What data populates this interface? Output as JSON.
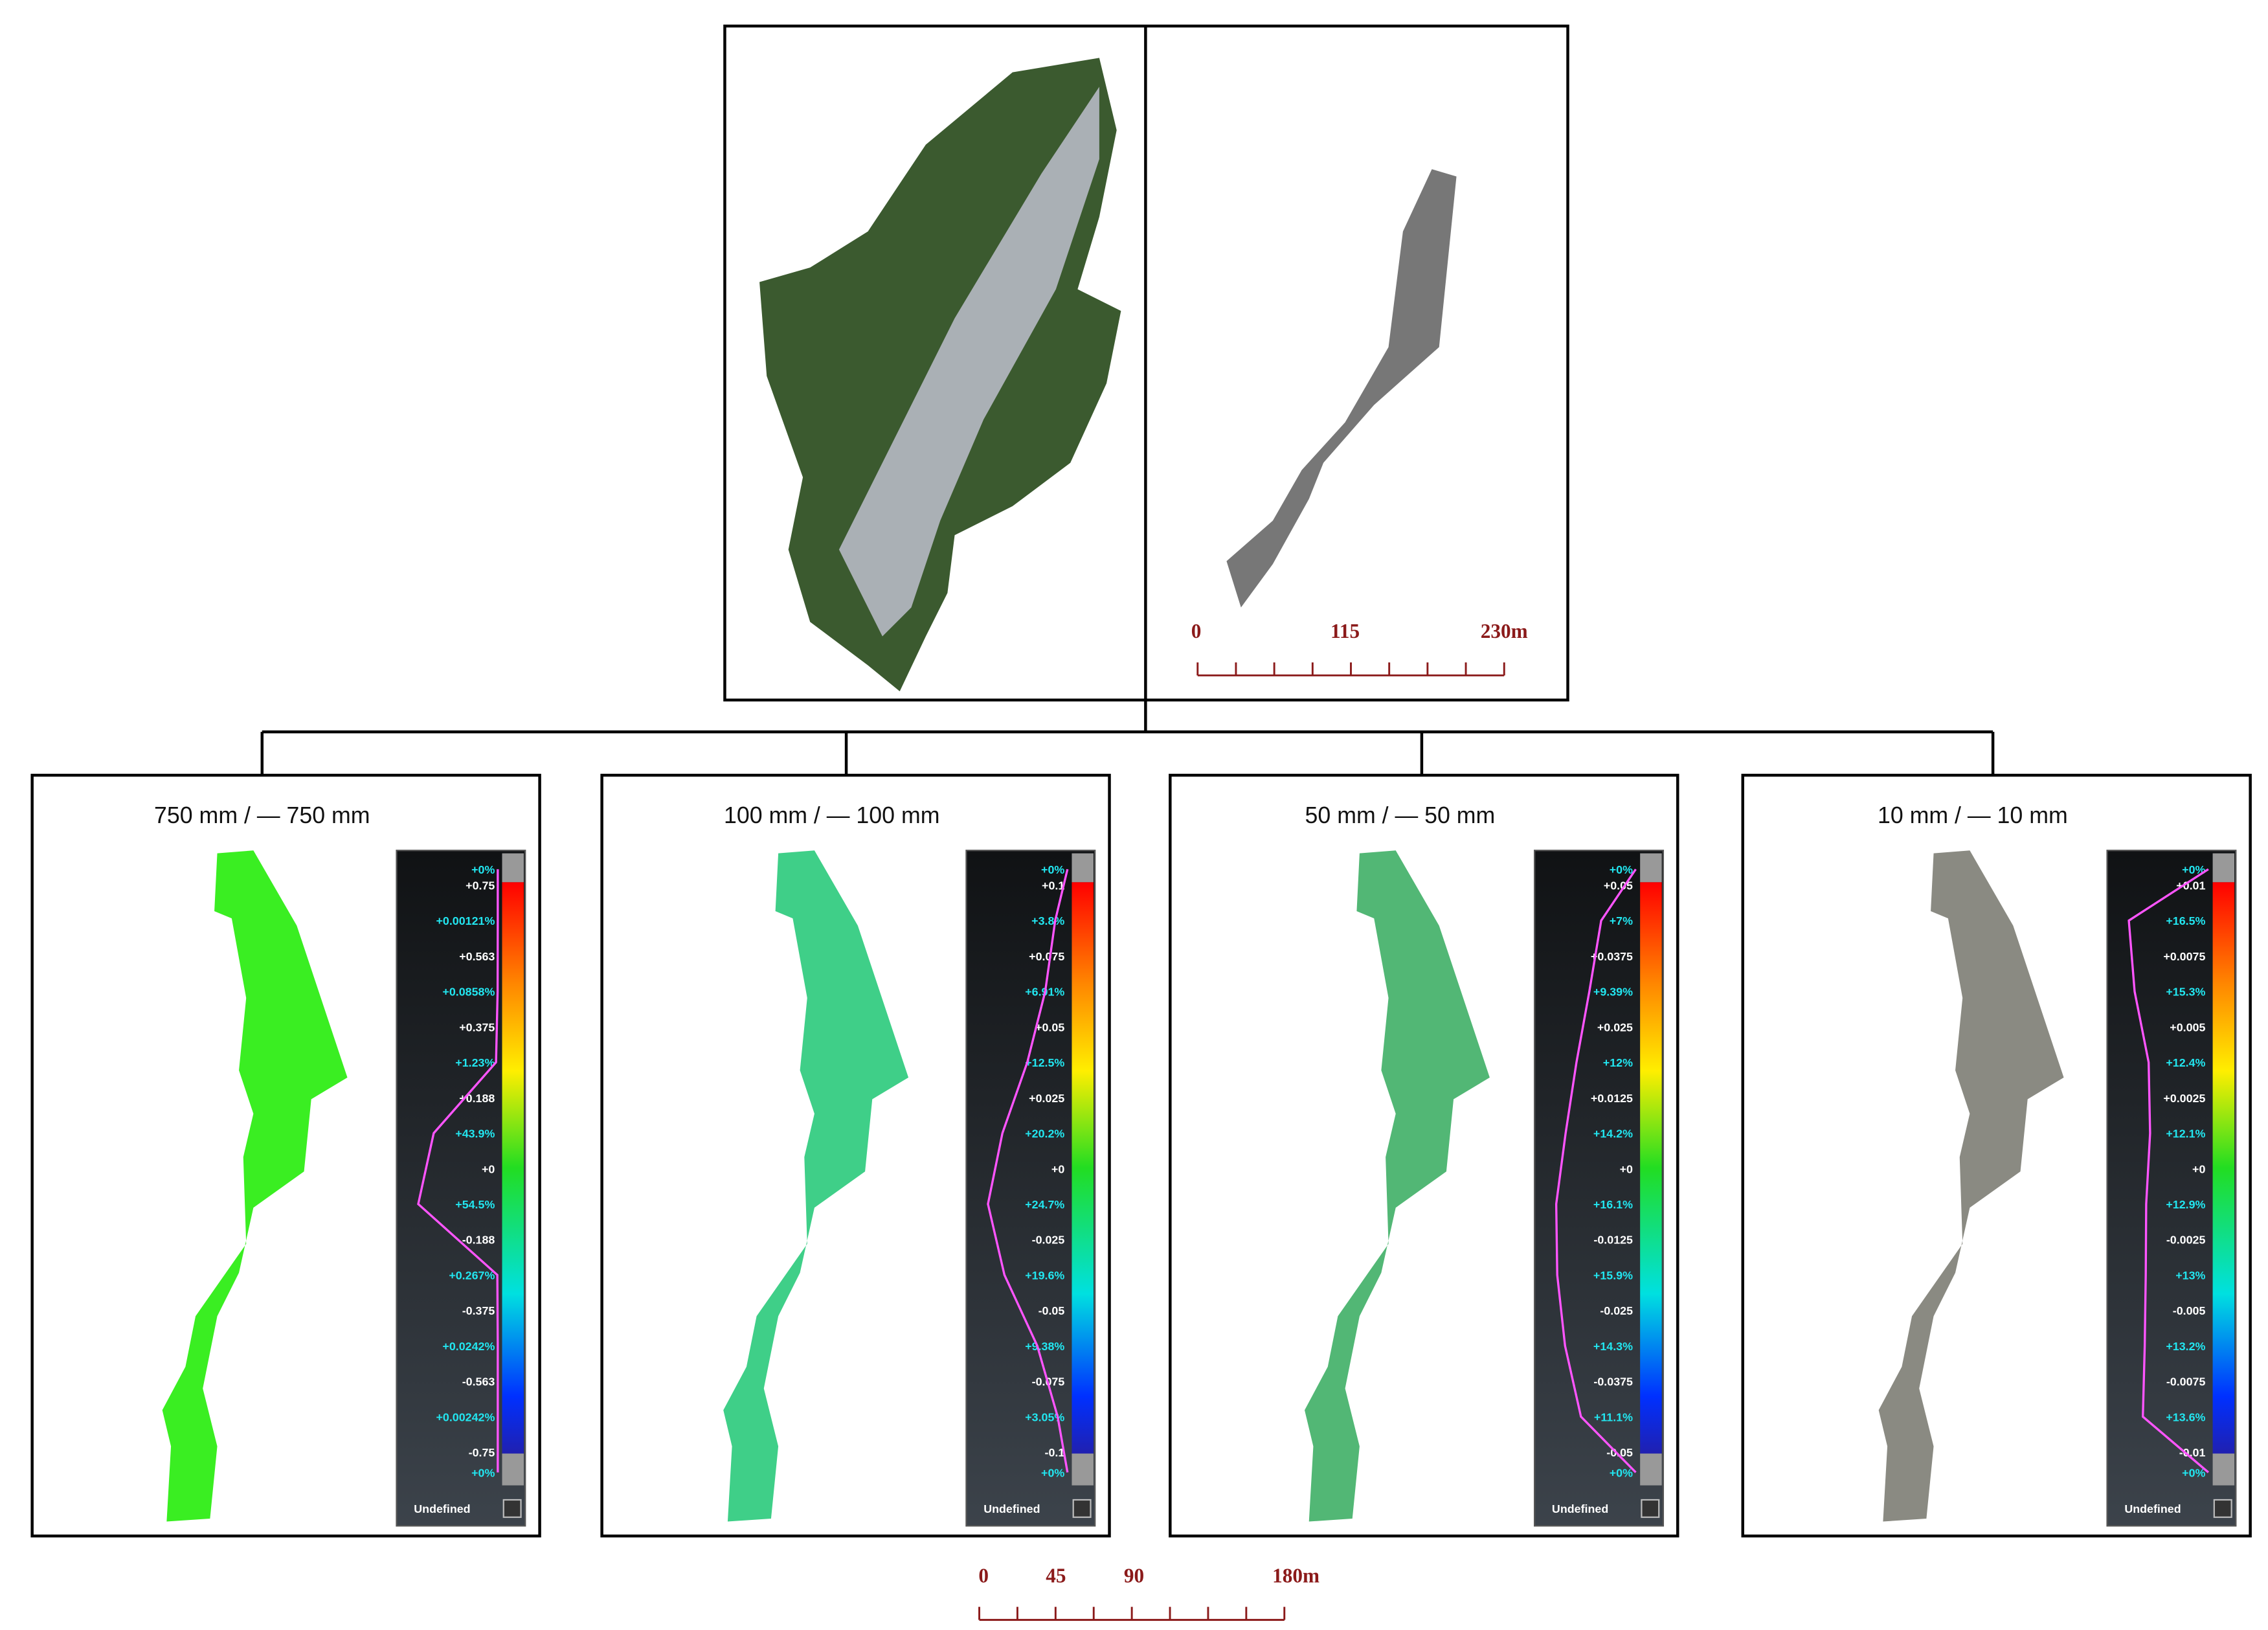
{
  "top": {
    "scale_bar": {
      "labels": [
        "0",
        "115",
        "230m"
      ]
    }
  },
  "panels": [
    {
      "title": "750 mm / — 750 mm",
      "legend": {
        "labels": [
          "+0%",
          "+0.75",
          "+0.00121%",
          "+0.563",
          "+0.0858%",
          "+0.375",
          "+1.23%",
          "+0.188",
          "+43.9%",
          "+0",
          "+54.5%",
          "-0.188",
          "+0.267%",
          "-0.375",
          "+0.0242%",
          "-0.563",
          "+0.00242%",
          "-0.75",
          "+0%"
        ],
        "undefined": "Undefined"
      }
    },
    {
      "title": "100 mm / — 100 mm",
      "legend": {
        "labels": [
          "+0%",
          "+0.1",
          "+3.8%",
          "+0.075",
          "+6.91%",
          "+0.05",
          "+12.5%",
          "+0.025",
          "+20.2%",
          "+0",
          "+24.7%",
          "-0.025",
          "+19.6%",
          "-0.05",
          "+9.38%",
          "-0.075",
          "+3.05%",
          "-0.1",
          "+0%"
        ],
        "undefined": "Undefined"
      }
    },
    {
      "title": "50 mm / — 50 mm",
      "legend": {
        "labels": [
          "+0%",
          "+0.05",
          "+7%",
          "+0.0375",
          "+9.39%",
          "+0.025",
          "+12%",
          "+0.0125",
          "+14.2%",
          "+0",
          "+16.1%",
          "-0.0125",
          "+15.9%",
          "-0.025",
          "+14.3%",
          "-0.0375",
          "+11.1%",
          "-0.05",
          "+0%"
        ],
        "undefined": "Undefined"
      }
    },
    {
      "title": "10 mm / — 10 mm",
      "legend": {
        "labels": [
          "+0%",
          "+0.01",
          "+16.5%",
          "+0.0075",
          "+15.3%",
          "+0.005",
          "+12.4%",
          "+0.0025",
          "+12.1%",
          "+0",
          "+12.9%",
          "-0.0025",
          "+13%",
          "-0.005",
          "+13.2%",
          "-0.0075",
          "+13.6%",
          "-0.01",
          "+0%"
        ],
        "undefined": "Undefined"
      }
    }
  ],
  "bottom_scale_bar": {
    "labels": [
      "0",
      "45",
      "90",
      "180m"
    ]
  }
}
